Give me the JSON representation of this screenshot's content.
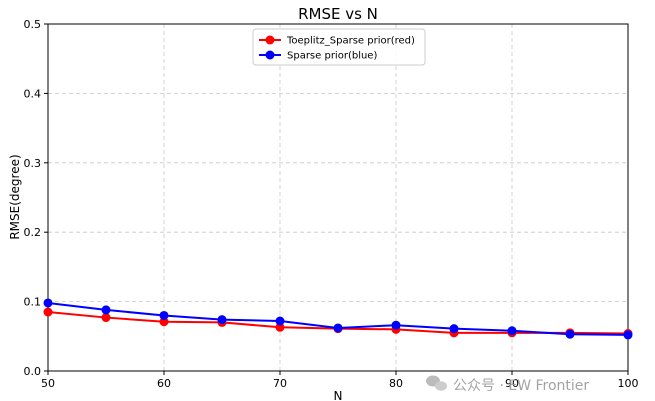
{
  "chart_data": {
    "type": "line",
    "title": "RMSE vs N",
    "xlabel": "N",
    "ylabel": "RMSE(degree)",
    "xlim": [
      50,
      100
    ],
    "ylim": [
      0.0,
      0.5
    ],
    "x_ticks": [
      50,
      60,
      70,
      80,
      90,
      100
    ],
    "y_ticks": [
      "0.0",
      "0.1",
      "0.2",
      "0.3",
      "0.4",
      "0.5"
    ],
    "grid": true,
    "legend_position": "top-center",
    "x": [
      50,
      55,
      60,
      65,
      70,
      75,
      80,
      85,
      90,
      95,
      100
    ],
    "series": [
      {
        "name": "Toeplitz_Sparse prior(red)",
        "color": "#ff0000",
        "values": [
          0.085,
          0.077,
          0.071,
          0.07,
          0.063,
          0.061,
          0.06,
          0.055,
          0.055,
          0.055,
          0.054
        ]
      },
      {
        "name": "Sparse prior(blue)",
        "color": "#0000ff",
        "values": [
          0.098,
          0.088,
          0.08,
          0.074,
          0.072,
          0.062,
          0.066,
          0.061,
          0.058,
          0.053,
          0.052
        ]
      }
    ]
  },
  "watermark": {
    "icon": "wechat-icon",
    "text": "公众号 · EW Frontier"
  }
}
